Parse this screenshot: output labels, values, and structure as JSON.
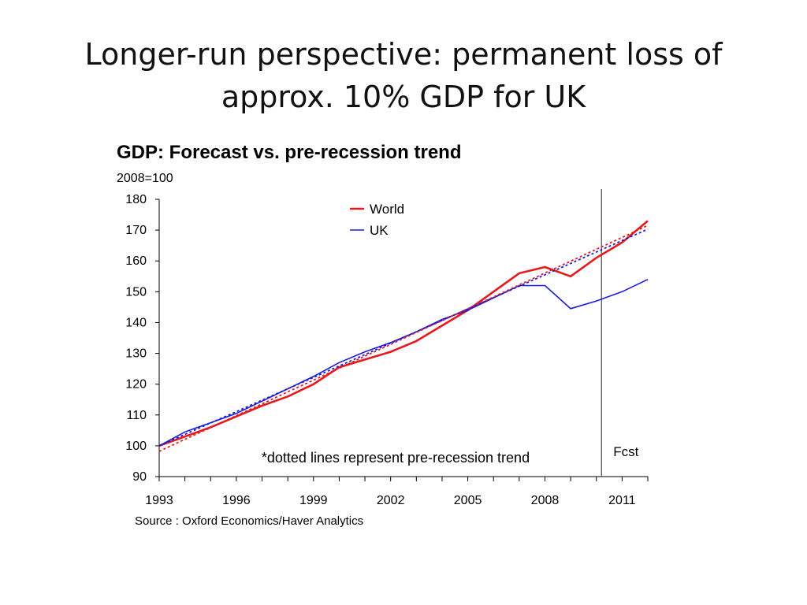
{
  "slide": {
    "title_line1": "Longer-run perspective: permanent loss of",
    "title_line2": "approx. 10% GDP for UK"
  },
  "chart_data": {
    "type": "line",
    "title": "GDP: Forecast vs. pre-recession trend",
    "unit_label": "2008=100",
    "source": "Source : Oxford Economics/Haver Analytics",
    "xlabel": "",
    "ylabel": "",
    "xlim": [
      1993,
      2012
    ],
    "ylim": [
      90,
      180
    ],
    "x_ticks": [
      1993,
      1994,
      1995,
      1996,
      1997,
      1998,
      1999,
      2000,
      2001,
      2002,
      2003,
      2004,
      2005,
      2006,
      2007,
      2008,
      2009,
      2010,
      2011,
      2012
    ],
    "x_tick_labels": [
      "1993",
      "1996",
      "1999",
      "2002",
      "2005",
      "2008",
      "2011"
    ],
    "y_tick_labels": [
      "90",
      "100",
      "110",
      "120",
      "130",
      "140",
      "150",
      "160",
      "170",
      "180"
    ],
    "grid": false,
    "legend_position": "top-center",
    "x": [
      1993,
      1994,
      1995,
      1996,
      1997,
      1998,
      1999,
      2000,
      2001,
      2002,
      2003,
      2004,
      2005,
      2006,
      2007,
      2008,
      2009,
      2010,
      2011,
      2012
    ],
    "series": [
      {
        "name": "World",
        "color": "#e41a1c",
        "style": "solid",
        "values": [
          100,
          103,
          106,
          109.5,
          113,
          116,
          120,
          125.5,
          128,
          130.5,
          134,
          139,
          144,
          150,
          156,
          158,
          155,
          161,
          166,
          173
        ]
      },
      {
        "name": "UK",
        "color": "#1a1adc",
        "style": "solid",
        "values": [
          100,
          104.5,
          107.5,
          110.5,
          114.5,
          118.5,
          122.5,
          127,
          130.5,
          133.5,
          137,
          141,
          144,
          148,
          152,
          152,
          144.5,
          147,
          150,
          154
        ]
      },
      {
        "color": "#e41a1c",
        "style": "dotted",
        "trend": true,
        "values": [
          98.2,
          102.1,
          105.9,
          109.8,
          113.6,
          117.5,
          121.3,
          125.2,
          129.1,
          132.9,
          136.8,
          140.6,
          144.5,
          148.3,
          152.2,
          156.1,
          159.9,
          163.8,
          167.6,
          171.5
        ]
      },
      {
        "color": "#1a1adc",
        "style": "dotted",
        "trend": true,
        "values": [
          100,
          103.7,
          107.4,
          111.1,
          114.8,
          118.5,
          122.2,
          125.9,
          129.6,
          133.3,
          137,
          140.7,
          144.4,
          148.1,
          151.8,
          155.5,
          159.2,
          162.9,
          166.6,
          170.3
        ]
      }
    ],
    "forecast_marker": {
      "x": 2010.2,
      "label": "Fcst"
    },
    "annotation": "*dotted lines represent pre-recession trend"
  }
}
